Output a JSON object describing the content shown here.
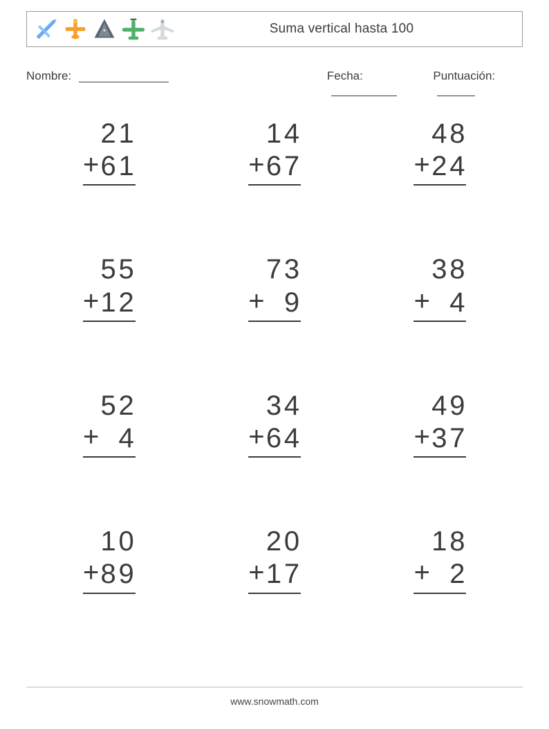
{
  "colors": {
    "ink": "#3b3b3b",
    "border": "#888888",
    "header_border": "#9b9b9b",
    "background": "#ffffff",
    "footer_rule": "#bfbfbf",
    "icon_blue": "#6aa9f4",
    "icon_orange": "#f6a02a",
    "icon_body": "#c0c0c0",
    "icon_dark": "#5a6470",
    "icon_green": "#4fb06a",
    "icon_gray": "#d5d9dc",
    "icon_accent_yellow": "#f4d23a"
  },
  "typography": {
    "title_fontsize": 19,
    "info_fontsize": 17,
    "problem_fontsize": 40,
    "footer_fontsize": 14,
    "font_family": "Segoe UI / Helvetica Neue / Arial"
  },
  "header": {
    "title": "Suma vertical hasta 100",
    "icons": [
      "plane-icon",
      "plane-cross-icon",
      "jet-icon",
      "propeller-plane-icon",
      "airliner-icon"
    ]
  },
  "labels": {
    "name": "Nombre:",
    "date": "Fecha:",
    "score": "Puntuación:"
  },
  "worksheet": {
    "type": "vertical-addition",
    "operator": "+",
    "columns": 3,
    "rows": 4,
    "problems": [
      {
        "a": 21,
        "b": 61
      },
      {
        "a": 14,
        "b": 67
      },
      {
        "a": 48,
        "b": 24
      },
      {
        "a": 55,
        "b": 12
      },
      {
        "a": 73,
        "b": 9
      },
      {
        "a": 38,
        "b": 4
      },
      {
        "a": 52,
        "b": 4
      },
      {
        "a": 34,
        "b": 64
      },
      {
        "a": 49,
        "b": 37
      },
      {
        "a": 10,
        "b": 89
      },
      {
        "a": 20,
        "b": 17
      },
      {
        "a": 18,
        "b": 2
      }
    ]
  },
  "footer": {
    "text": "www.snowmath.com"
  }
}
